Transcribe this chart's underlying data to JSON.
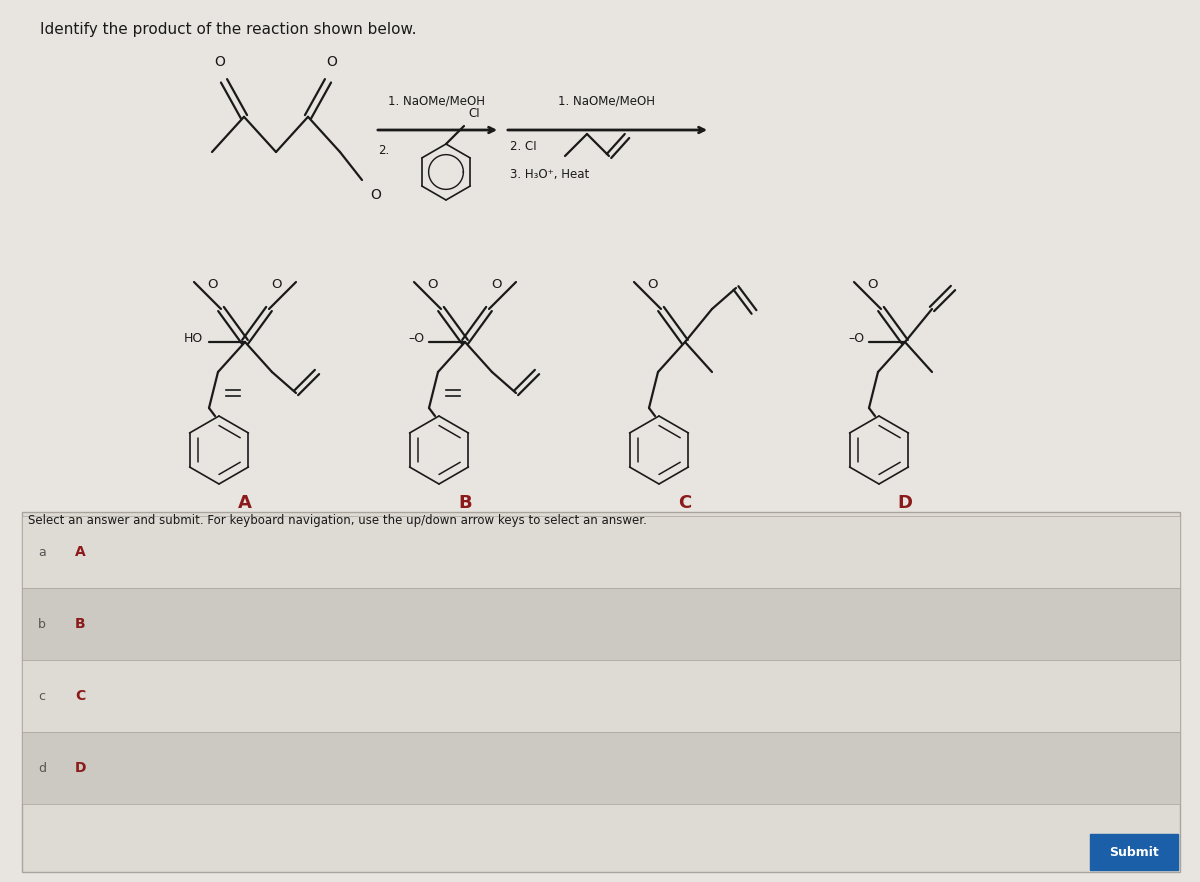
{
  "title": "Identify the product of the reaction shown below.",
  "bg_color": "#e8e5e0",
  "content_bg": "#dedad4",
  "text_color": "#1a1a1a",
  "label_color": "#8b1a1a",
  "step1_line1": "1. NaOMe/MeOH",
  "step1_line2": "2.",
  "step1_CI": "CI",
  "step2_line1": "1. NaOMe/MeOH",
  "step2_line2": "2. CI",
  "step2_line3": "3. H₃O⁺, Heat",
  "answer_labels": [
    "a",
    "b",
    "c",
    "d"
  ],
  "answer_choices": [
    "A",
    "B",
    "C",
    "D"
  ],
  "submit_text": "Submit",
  "select_text": "Select an answer and submit. For keyboard navigation, use the up/down arrow keys to select an answer.",
  "row_bg_odd": "#dedad4",
  "row_bg_even": "#ccc8c2",
  "submit_bg": "#1a5fa8"
}
